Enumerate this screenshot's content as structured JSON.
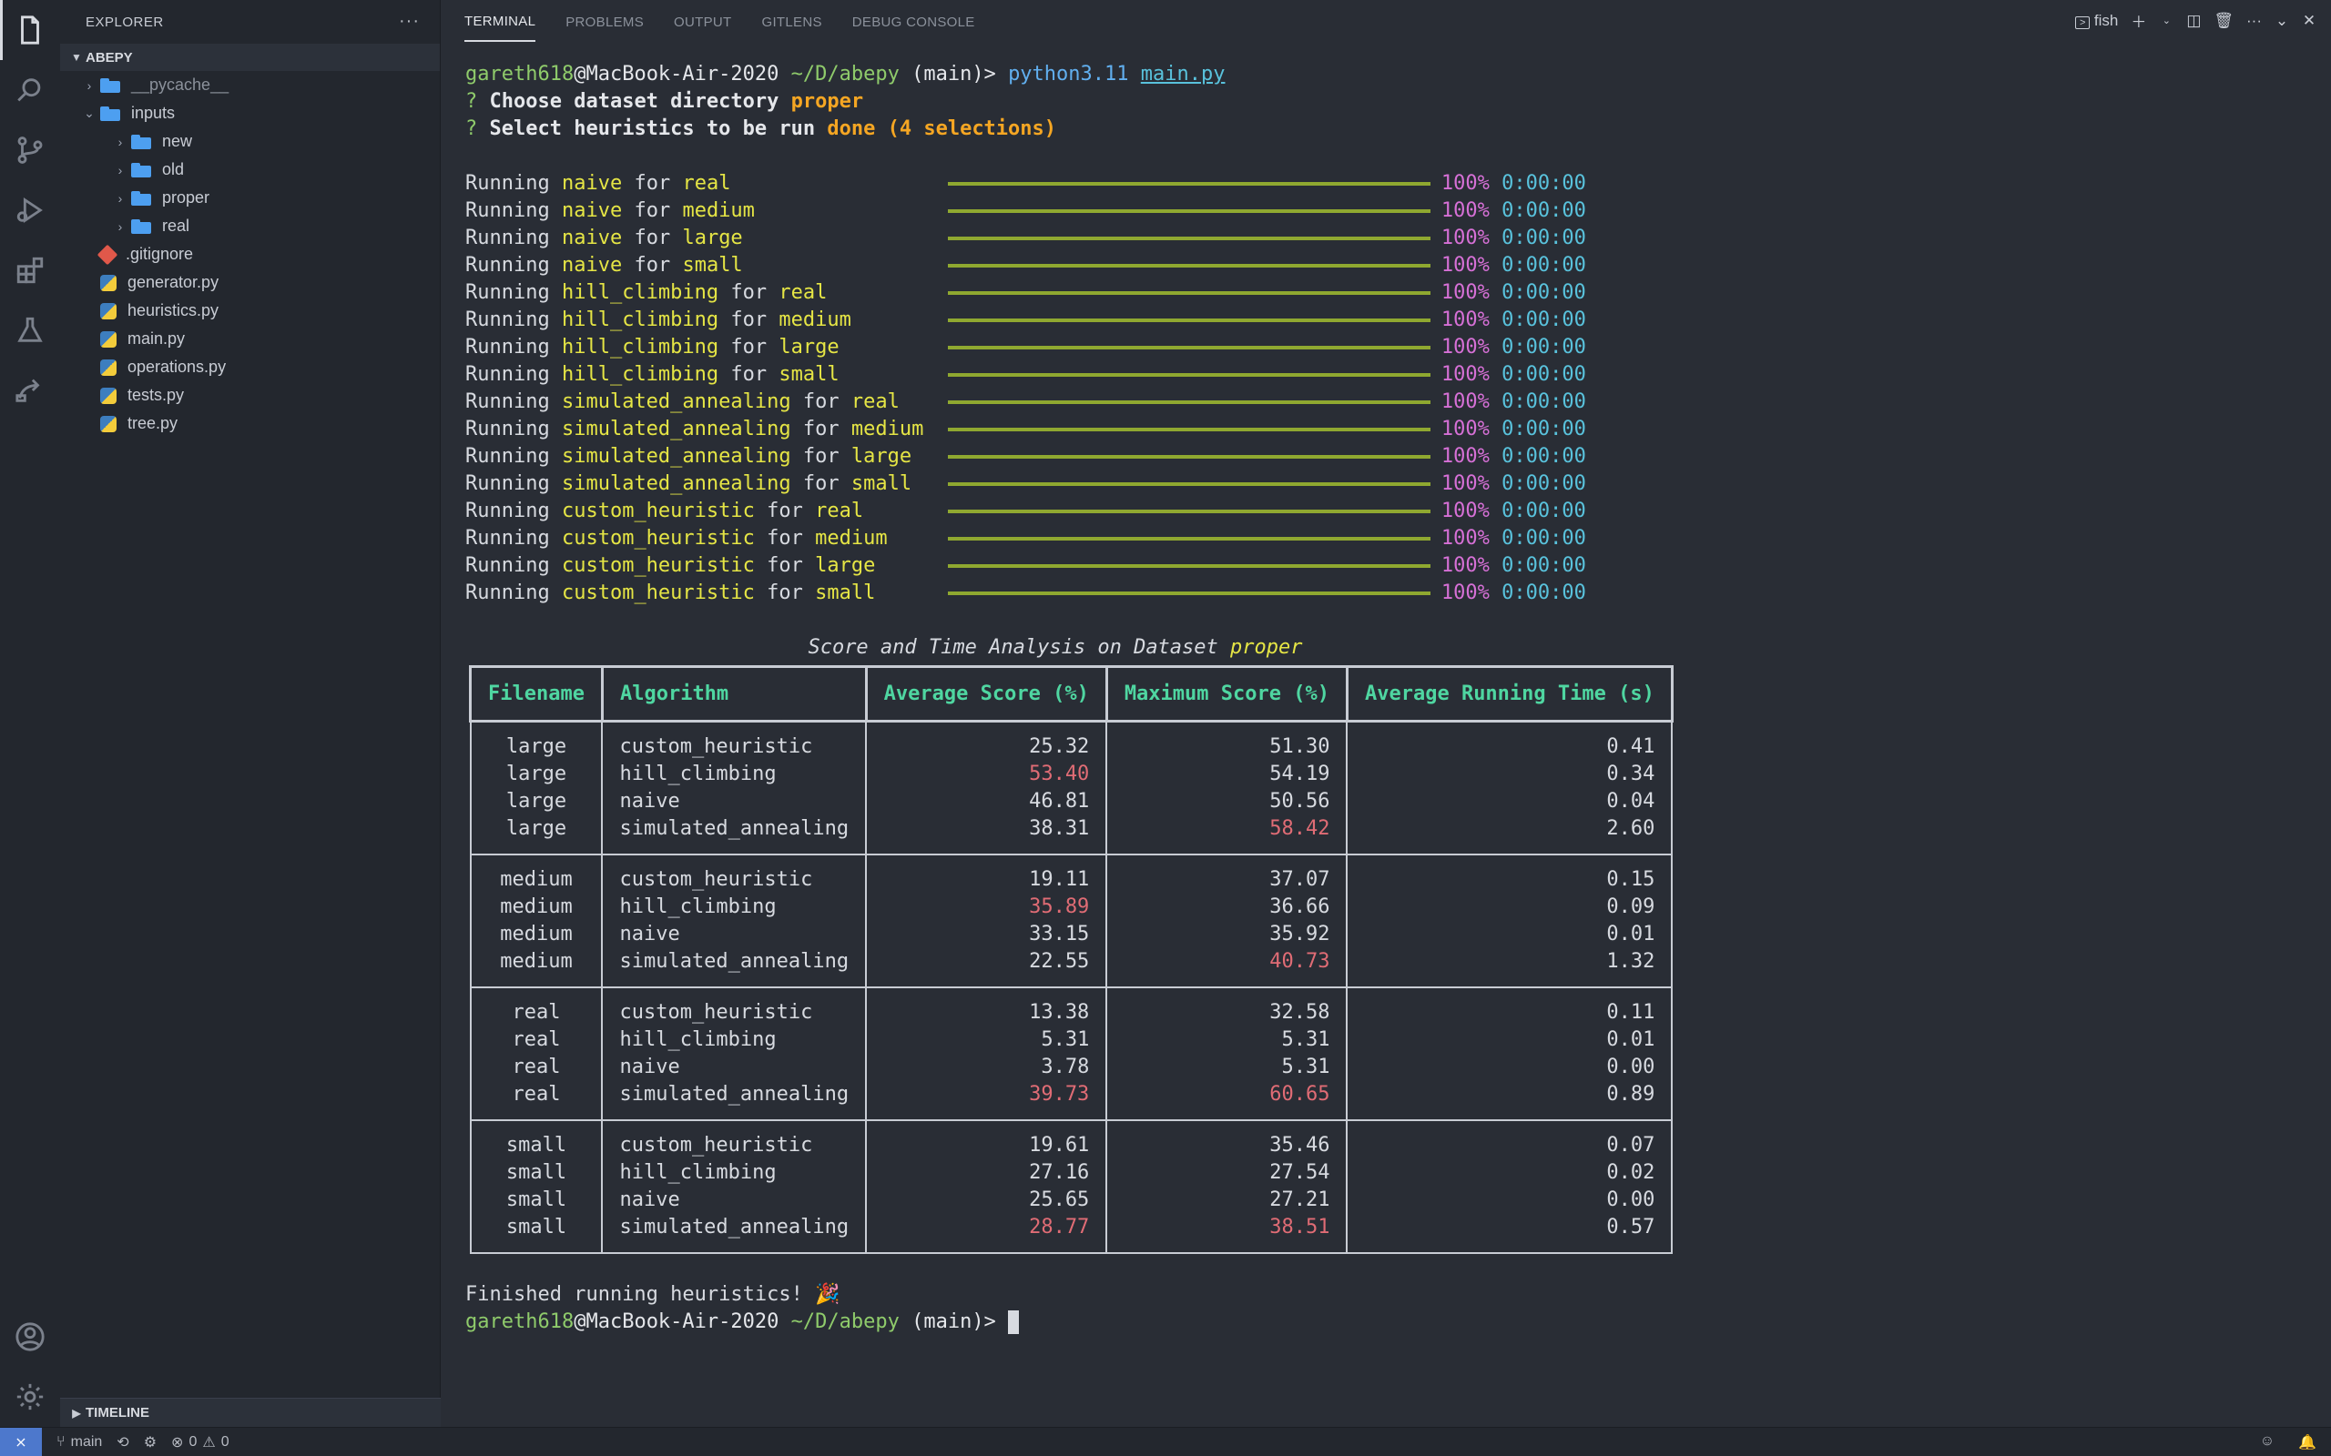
{
  "activity_icons": [
    "files-icon",
    "search-icon",
    "source-control-icon",
    "run-debug-icon",
    "extensions-icon",
    "testing-icon",
    "remote-explorer-icon",
    "account-icon",
    "settings-gear-icon"
  ],
  "sidebar": {
    "title": "EXPLORER",
    "project": "ABEPY",
    "tree": [
      {
        "name": "__pycache__",
        "type": "folder",
        "depth": 0,
        "expanded": false,
        "dim": true
      },
      {
        "name": "inputs",
        "type": "folder",
        "depth": 0,
        "expanded": true
      },
      {
        "name": "new",
        "type": "folder",
        "depth": 1,
        "expanded": false
      },
      {
        "name": "old",
        "type": "folder",
        "depth": 1,
        "expanded": false
      },
      {
        "name": "proper",
        "type": "folder",
        "depth": 1,
        "expanded": false
      },
      {
        "name": "real",
        "type": "folder",
        "depth": 1,
        "expanded": false
      },
      {
        "name": ".gitignore",
        "type": "git",
        "depth": 0
      },
      {
        "name": "generator.py",
        "type": "py",
        "depth": 0
      },
      {
        "name": "heuristics.py",
        "type": "py",
        "depth": 0
      },
      {
        "name": "main.py",
        "type": "py",
        "depth": 0
      },
      {
        "name": "operations.py",
        "type": "py",
        "depth": 0
      },
      {
        "name": "tests.py",
        "type": "py",
        "depth": 0
      },
      {
        "name": "tree.py",
        "type": "py",
        "depth": 0
      }
    ],
    "timeline": "TIMELINE"
  },
  "panel": {
    "tabs": [
      "TERMINAL",
      "PROBLEMS",
      "OUTPUT",
      "GITLENS",
      "DEBUG CONSOLE"
    ],
    "active_tab": "TERMINAL",
    "shell": "fish"
  },
  "terminal": {
    "prompt": {
      "user": "gareth618",
      "host": "@MacBook-Air-2020",
      "path": " ~/D/abepy",
      "branch": " (main)> "
    },
    "command": {
      "program": "python3.11",
      "arg": "main.py"
    },
    "q1": {
      "mark": "? ",
      "label": "Choose dataset directory ",
      "answer": "proper"
    },
    "q2": {
      "mark": "? ",
      "label": "Select heuristics to be run ",
      "answer": "done (4 selections)"
    },
    "runs": [
      {
        "algo": "naive",
        "dataset": "real"
      },
      {
        "algo": "naive",
        "dataset": "medium"
      },
      {
        "algo": "naive",
        "dataset": "large"
      },
      {
        "algo": "naive",
        "dataset": "small"
      },
      {
        "algo": "hill_climbing",
        "dataset": "real"
      },
      {
        "algo": "hill_climbing",
        "dataset": "medium"
      },
      {
        "algo": "hill_climbing",
        "dataset": "large"
      },
      {
        "algo": "hill_climbing",
        "dataset": "small"
      },
      {
        "algo": "simulated_annealing",
        "dataset": "real"
      },
      {
        "algo": "simulated_annealing",
        "dataset": "medium"
      },
      {
        "algo": "simulated_annealing",
        "dataset": "large"
      },
      {
        "algo": "simulated_annealing",
        "dataset": "small"
      },
      {
        "algo": "custom_heuristic",
        "dataset": "real"
      },
      {
        "algo": "custom_heuristic",
        "dataset": "medium"
      },
      {
        "algo": "custom_heuristic",
        "dataset": "large"
      },
      {
        "algo": "custom_heuristic",
        "dataset": "small"
      }
    ],
    "run_word": "Running",
    "for_word": "for",
    "percent": "100%",
    "elapsed": "0:00:00",
    "progress": 1.0,
    "table_title_prefix": "Score and Time Analysis on Dataset ",
    "table_title_dataset": "proper",
    "columns": [
      "Filename",
      "Algorithm",
      "Average Score (%)",
      "Maximum Score (%)",
      "Average Running Time (s)"
    ],
    "groups": [
      {
        "rows": [
          {
            "file": "large",
            "algo": "custom_heuristic",
            "avg": "25.32",
            "max": "51.30",
            "time": "0.41",
            "hl_avg": false,
            "hl_max": false
          },
          {
            "file": "large",
            "algo": "hill_climbing",
            "avg": "53.40",
            "max": "54.19",
            "time": "0.34",
            "hl_avg": true,
            "hl_max": false
          },
          {
            "file": "large",
            "algo": "naive",
            "avg": "46.81",
            "max": "50.56",
            "time": "0.04",
            "hl_avg": false,
            "hl_max": false
          },
          {
            "file": "large",
            "algo": "simulated_annealing",
            "avg": "38.31",
            "max": "58.42",
            "time": "2.60",
            "hl_avg": false,
            "hl_max": true
          }
        ]
      },
      {
        "rows": [
          {
            "file": "medium",
            "algo": "custom_heuristic",
            "avg": "19.11",
            "max": "37.07",
            "time": "0.15",
            "hl_avg": false,
            "hl_max": false
          },
          {
            "file": "medium",
            "algo": "hill_climbing",
            "avg": "35.89",
            "max": "36.66",
            "time": "0.09",
            "hl_avg": true,
            "hl_max": false
          },
          {
            "file": "medium",
            "algo": "naive",
            "avg": "33.15",
            "max": "35.92",
            "time": "0.01",
            "hl_avg": false,
            "hl_max": false
          },
          {
            "file": "medium",
            "algo": "simulated_annealing",
            "avg": "22.55",
            "max": "40.73",
            "time": "1.32",
            "hl_avg": false,
            "hl_max": true
          }
        ]
      },
      {
        "rows": [
          {
            "file": "real",
            "algo": "custom_heuristic",
            "avg": "13.38",
            "max": "32.58",
            "time": "0.11",
            "hl_avg": false,
            "hl_max": false
          },
          {
            "file": "real",
            "algo": "hill_climbing",
            "avg": "5.31",
            "max": "5.31",
            "time": "0.01",
            "hl_avg": false,
            "hl_max": false
          },
          {
            "file": "real",
            "algo": "naive",
            "avg": "3.78",
            "max": "5.31",
            "time": "0.00",
            "hl_avg": false,
            "hl_max": false
          },
          {
            "file": "real",
            "algo": "simulated_annealing",
            "avg": "39.73",
            "max": "60.65",
            "time": "0.89",
            "hl_avg": true,
            "hl_max": true
          }
        ]
      },
      {
        "rows": [
          {
            "file": "small",
            "algo": "custom_heuristic",
            "avg": "19.61",
            "max": "35.46",
            "time": "0.07",
            "hl_avg": false,
            "hl_max": false
          },
          {
            "file": "small",
            "algo": "hill_climbing",
            "avg": "27.16",
            "max": "27.54",
            "time": "0.02",
            "hl_avg": false,
            "hl_max": false
          },
          {
            "file": "small",
            "algo": "naive",
            "avg": "25.65",
            "max": "27.21",
            "time": "0.00",
            "hl_avg": false,
            "hl_max": false
          },
          {
            "file": "small",
            "algo": "simulated_annealing",
            "avg": "28.77",
            "max": "38.51",
            "time": "0.57",
            "hl_avg": true,
            "hl_max": true
          }
        ]
      }
    ],
    "finished": "Finished running heuristics! 🎉"
  },
  "statusbar": {
    "branch": "main",
    "errors": "0",
    "warnings": "0"
  },
  "colors": {
    "accent": "#4d78cc",
    "green": "#8fcb6b",
    "yellow": "#e5e545",
    "magenta": "#d670d6",
    "cyan": "#59c2dc",
    "red": "#e06c75",
    "header": "#4fd6a1"
  }
}
